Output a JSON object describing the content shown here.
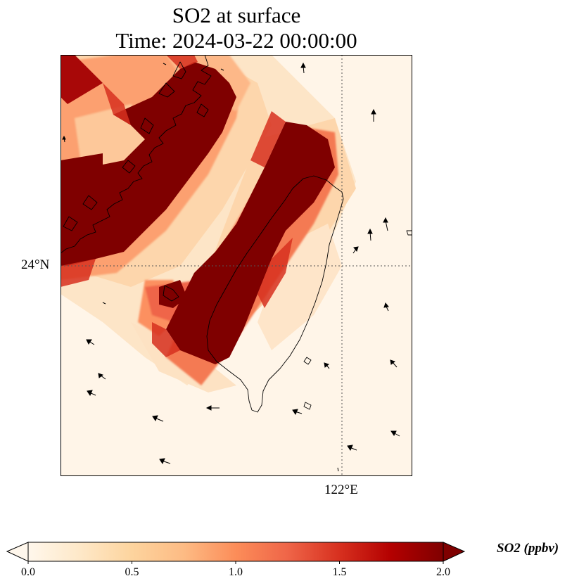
{
  "title": {
    "line1": "SO2 at surface",
    "line2": "Time: 2024-03-22 00:00:00"
  },
  "axes": {
    "lat_label": "24°N",
    "lon_label": "122°E"
  },
  "colorbar": {
    "label": "SO2 (ppbv)",
    "ticks": [
      "0.0",
      "0.5",
      "1.0",
      "1.5",
      "2.0"
    ],
    "min": 0.0,
    "max": 2.0,
    "colormap": "OrRd",
    "extend": "both",
    "colors": [
      "#fff7ec",
      "#fee8c8",
      "#fdd49e",
      "#fdbb84",
      "#fc8d59",
      "#ef6548",
      "#d7301f",
      "#b30000",
      "#7f0000"
    ]
  },
  "map": {
    "projection": "lat-lon",
    "gridlines": "dotted",
    "colors": {
      "background": "#fff5e8",
      "coastline": "#000000",
      "gridline": "#555555"
    },
    "wind_vectors": "shown"
  }
}
